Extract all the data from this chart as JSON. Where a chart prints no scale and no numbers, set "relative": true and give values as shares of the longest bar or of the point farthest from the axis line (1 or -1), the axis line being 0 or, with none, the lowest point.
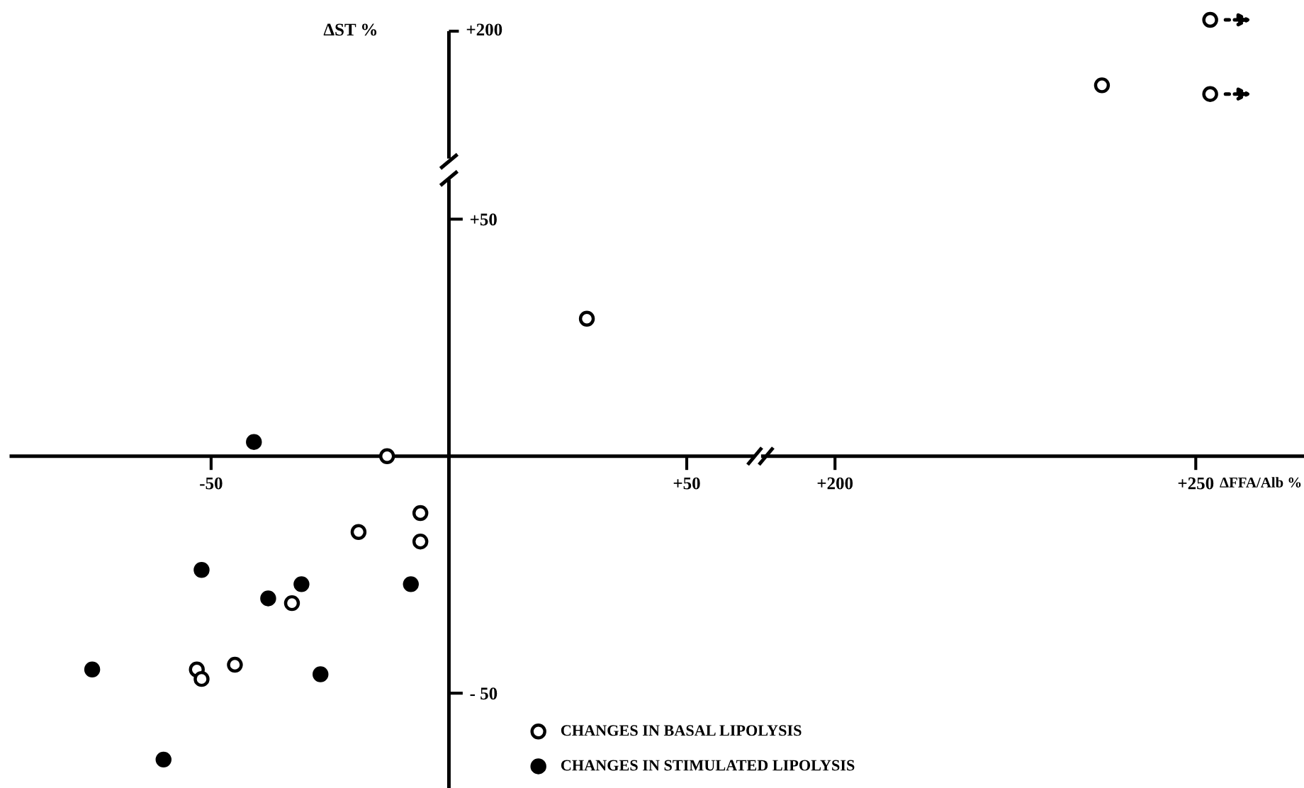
{
  "chart_data": [
    {
      "type": "scatter",
      "ylabel": "ΔST %",
      "annotations": [
        "+200"
      ],
      "xlim": [
        -92,
        64
      ],
      "ylim": [
        -70,
        58
      ],
      "xticks": [
        {
          "value": -50,
          "label": "-50"
        },
        {
          "value": 50,
          "label": "+50"
        }
      ],
      "yticks": [
        {
          "value": -50,
          "label": "- 50"
        },
        {
          "value": 50,
          "label": "+50"
        }
      ],
      "marker": "circle",
      "legend": "bottom right",
      "series": [
        {
          "name": "CHANGES IN BASAL LIPOLYSIS",
          "color": "#ffffff",
          "x": [
            -13,
            -6,
            -6,
            -19,
            -33,
            -45,
            -53,
            -52,
            29
          ],
          "values": [
            0,
            -12,
            -18,
            -16,
            -31,
            -44,
            -45,
            -47,
            29
          ]
        },
        {
          "name": "CHANGES IN STIMULATED LIPOLYSIS",
          "color": "#000000",
          "x": [
            -41,
            -52,
            -38,
            -31,
            -8,
            -27,
            -75,
            -60
          ],
          "values": [
            3,
            -24,
            -30,
            -27,
            -27,
            -46,
            -45,
            -64
          ]
        }
      ]
    },
    {
      "type": "scatter",
      "relative": true,
      "xlabel": "ΔFFA/Alb %",
      "xlim": [
        190,
        265
      ],
      "xticks": [
        {
          "value": 200,
          "label": "+200"
        },
        {
          "value": 250,
          "label": "+250"
        }
      ],
      "tick_labels": "x",
      "marker": "circle",
      "series": [
        {
          "color": "#ffffff",
          "x": [
            237,
            252,
            252
          ],
          "values": [
            0.85,
            1,
            0.83
          ]
        }
      ]
    }
  ]
}
